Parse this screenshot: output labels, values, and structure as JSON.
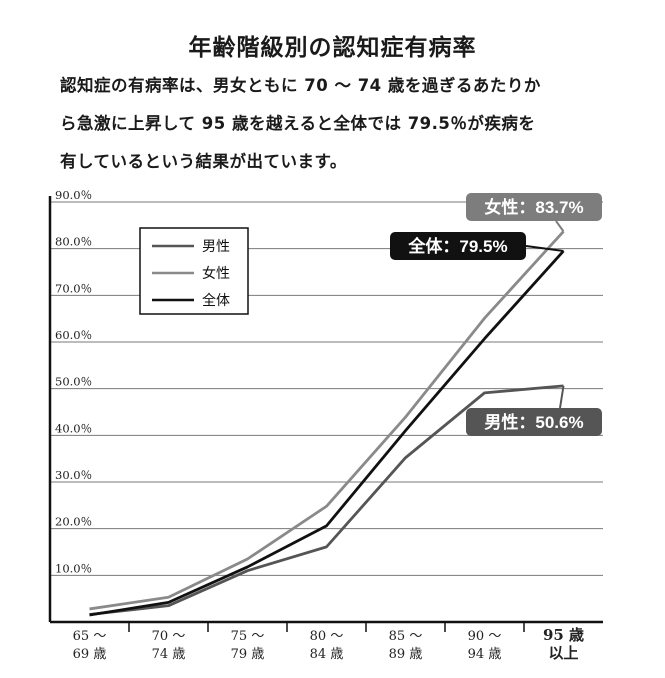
{
  "title": "年齢階級別の認知症有病率",
  "description": [
    "認知症の有病率は、男女ともに 70 ～ 74 歳を過ぎるあたりか",
    "ら急激に上昇して 95 歳を越えると全体では 79.5％が疾病を",
    "有しているという結果が出ています。"
  ],
  "chart_data": {
    "type": "line",
    "categories": [
      [
        "65 ～",
        "69 歳"
      ],
      [
        "70 ～",
        "74 歳"
      ],
      [
        "75 ～",
        "79 歳"
      ],
      [
        "80 ～",
        "84 歳"
      ],
      [
        "85 ～",
        "89 歳"
      ],
      [
        "90 ～",
        "94 歳"
      ],
      [
        "95 歳",
        "以上"
      ]
    ],
    "ylim": [
      0,
      90
    ],
    "yticks": [
      "10.0％",
      "20.0％",
      "30.0％",
      "40.0％",
      "50.0％",
      "60.0％",
      "70.0％",
      "80.0％",
      "90.0％"
    ],
    "grid": true,
    "legend_position": "top-left",
    "series": [
      {
        "name": "男性",
        "color": "#555555",
        "values": [
          1.6,
          3.5,
          11.0,
          16.1,
          35.2,
          49.1,
          50.6
        ]
      },
      {
        "name": "女性",
        "color": "#8a8a8a",
        "values": [
          2.8,
          5.3,
          13.5,
          24.8,
          43.9,
          65.1,
          83.7
        ]
      },
      {
        "name": "全体",
        "color": "#111111",
        "values": [
          1.5,
          4.2,
          11.8,
          20.6,
          41.0,
          60.7,
          79.5
        ]
      }
    ],
    "annotations": [
      {
        "series": "女性",
        "label": "女性：83.7%",
        "bg": "#7d7d7d"
      },
      {
        "series": "全体",
        "label": "全体：79.5%",
        "bg": "#111111"
      },
      {
        "series": "男性",
        "label": "男性：50.6%",
        "bg": "#555555"
      }
    ]
  }
}
